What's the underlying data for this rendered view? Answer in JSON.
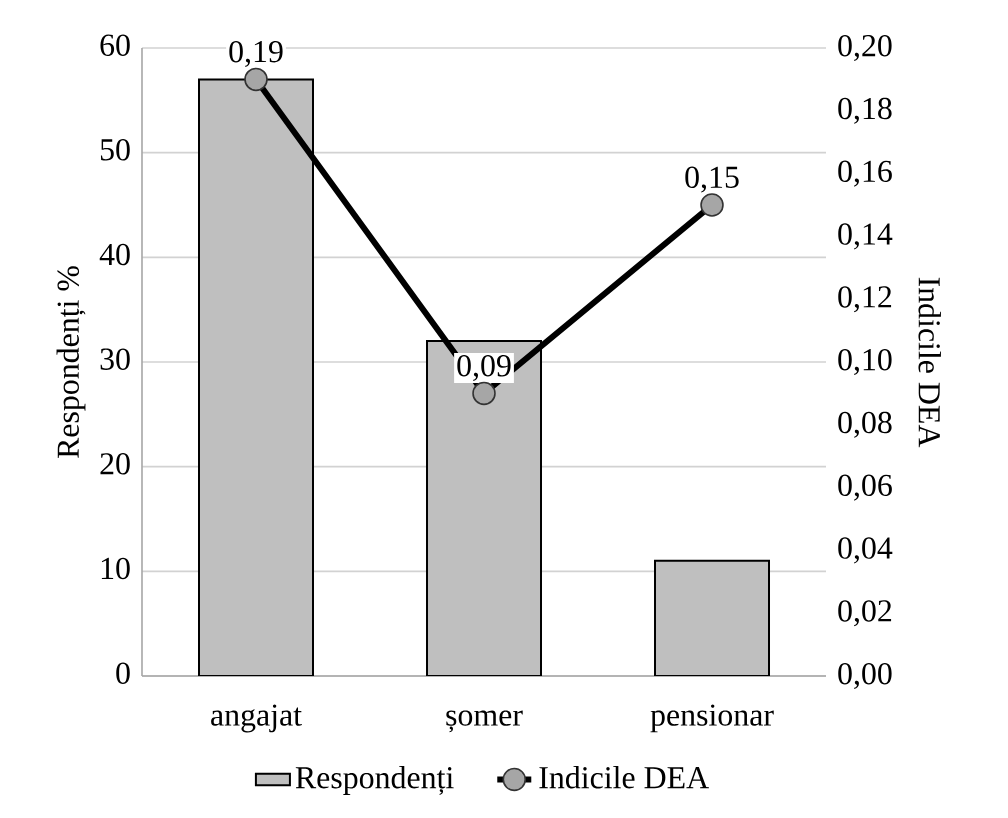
{
  "chart_data": {
    "type": "bar",
    "categories": [
      "angajat",
      "șomer",
      "pensionar"
    ],
    "series": [
      {
        "name": "Respondenți",
        "color": "#bfbfbf",
        "values": [
          57,
          32,
          11
        ]
      },
      {
        "name": "Indicile DEA",
        "type": "line",
        "axis": "y2",
        "color": "#000000",
        "marker": "circle",
        "values": [
          0.19,
          0.09,
          0.15
        ],
        "value_labels": [
          "0,19",
          "0,09",
          "0,15"
        ]
      }
    ],
    "ylabel": "Respondenți %",
    "y2label": "Indicile DEA",
    "ylim": [
      0,
      60
    ],
    "yticks": [
      0,
      10,
      20,
      30,
      40,
      50,
      60
    ],
    "y2lim": [
      0,
      0.2
    ],
    "y2ticks": [
      {
        "value": 0,
        "label": "0,00"
      },
      {
        "value": 0.02,
        "label": "0,02"
      },
      {
        "value": 0.04,
        "label": "0,04"
      },
      {
        "value": 0.06,
        "label": "0,06"
      },
      {
        "value": 0.08,
        "label": "0,08"
      },
      {
        "value": 0.1,
        "label": "0,10"
      },
      {
        "value": 0.12,
        "label": "0,12"
      },
      {
        "value": 0.14,
        "label": "0,14"
      },
      {
        "value": 0.16,
        "label": "0,16"
      },
      {
        "value": 0.18,
        "label": "0,18"
      },
      {
        "value": 0.2,
        "label": "0,20"
      }
    ],
    "grid": "y",
    "legend": "bottom"
  }
}
